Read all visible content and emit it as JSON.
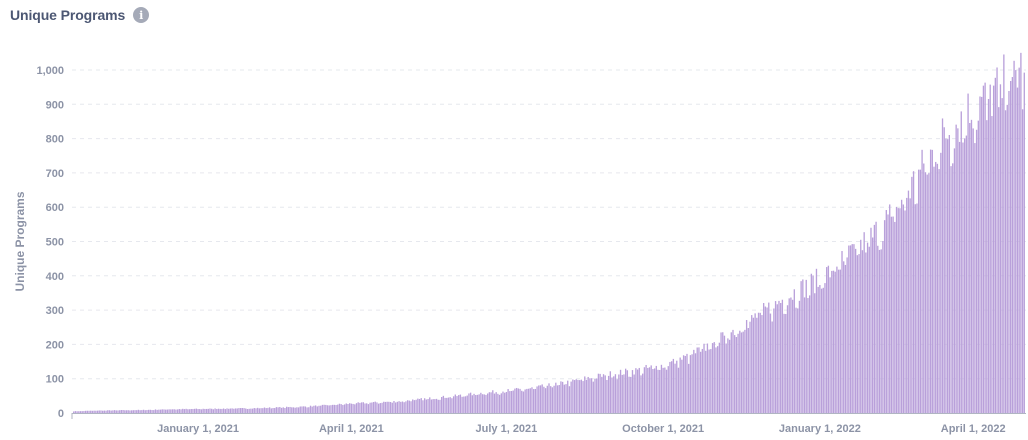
{
  "card": {
    "title": "Unique Programs",
    "info_icon": "info-icon"
  },
  "colors": {
    "bar": "#b9a0da",
    "bar_edge": "#a888d0",
    "grid": "#e6e8ee",
    "axis": "#b0b5c2",
    "text": "#4c5773",
    "tick": "#8c93a6"
  },
  "chart_data": {
    "type": "bar",
    "title": "Unique Programs",
    "xlabel": "",
    "ylabel": "Unique Programs",
    "x_range": [
      "2020-10-19",
      "2022-05-02"
    ],
    "ylim": [
      0,
      1050
    ],
    "y_ticks": [
      0,
      100,
      200,
      300,
      400,
      500,
      600,
      700,
      800,
      900,
      1000
    ],
    "y_tick_labels": [
      "0",
      "100",
      "200",
      "300",
      "400",
      "500",
      "600",
      "700",
      "800",
      "900",
      "1,000"
    ],
    "x_ticks": [
      "2021-01-01",
      "2021-04-01",
      "2021-07-01",
      "2021-10-01",
      "2022-01-01",
      "2022-04-01"
    ],
    "x_tick_labels": [
      "January 1, 2021",
      "April 1, 2021",
      "July 1, 2021",
      "October 1, 2021",
      "January 1, 2022",
      "April 1, 2022"
    ],
    "grid": true,
    "legend": "none",
    "series": [
      {
        "name": "Unique Programs",
        "points": [
          [
            "2020-10-20",
            5
          ],
          [
            "2020-11-01",
            7
          ],
          [
            "2020-11-15",
            8
          ],
          [
            "2020-12-01",
            9
          ],
          [
            "2020-12-15",
            11
          ],
          [
            "2021-01-01",
            12
          ],
          [
            "2021-01-15",
            13
          ],
          [
            "2021-02-01",
            14
          ],
          [
            "2021-02-15",
            16
          ],
          [
            "2021-03-01",
            18
          ],
          [
            "2021-03-15",
            22
          ],
          [
            "2021-04-01",
            28
          ],
          [
            "2021-04-15",
            31
          ],
          [
            "2021-05-01",
            35
          ],
          [
            "2021-05-15",
            42
          ],
          [
            "2021-06-01",
            50
          ],
          [
            "2021-06-15",
            58
          ],
          [
            "2021-07-01",
            65
          ],
          [
            "2021-07-15",
            72
          ],
          [
            "2021-08-01",
            85
          ],
          [
            "2021-08-15",
            100
          ],
          [
            "2021-09-01",
            115
          ],
          [
            "2021-09-15",
            125
          ],
          [
            "2021-10-01",
            140
          ],
          [
            "2021-10-15",
            165
          ],
          [
            "2021-11-01",
            210
          ],
          [
            "2021-11-15",
            255
          ],
          [
            "2021-12-01",
            305
          ],
          [
            "2021-12-15",
            350
          ],
          [
            "2022-01-01",
            395
          ],
          [
            "2022-01-15",
            450
          ],
          [
            "2022-02-01",
            520
          ],
          [
            "2022-02-15",
            600
          ],
          [
            "2022-03-01",
            710
          ],
          [
            "2022-03-15",
            820
          ],
          [
            "2022-04-01",
            900
          ],
          [
            "2022-04-15",
            950
          ],
          [
            "2022-04-30",
            1020
          ]
        ]
      }
    ]
  }
}
